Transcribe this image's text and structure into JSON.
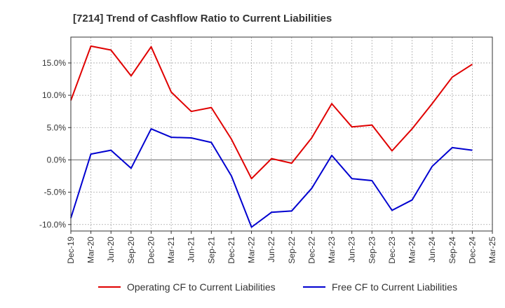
{
  "chart_data": {
    "type": "line",
    "title": "[7214]  Trend of Cashflow Ratio to Current Liabilities",
    "xlabel": "",
    "ylabel": "",
    "x": [
      "Dec-19",
      "Mar-20",
      "Jun-20",
      "Sep-20",
      "Dec-20",
      "Mar-21",
      "Jun-21",
      "Sep-21",
      "Dec-21",
      "Mar-22",
      "Jun-22",
      "Sep-22",
      "Dec-22",
      "Mar-23",
      "Jun-23",
      "Sep-23",
      "Dec-23",
      "Mar-24",
      "Jun-24",
      "Sep-24",
      "Dec-24",
      "Mar-25"
    ],
    "ylim": [
      -11,
      19
    ],
    "yticks": [
      15,
      10,
      5,
      0,
      -5,
      -10
    ],
    "ytick_labels": [
      "15.0%",
      "10.0%",
      "5.0%",
      "0.0%",
      "-5.0%",
      "-10.0%"
    ],
    "grid": true,
    "legend_position": "bottom",
    "series": [
      {
        "name": "Operating CF to Current Liabilities",
        "color": "#e00000",
        "values": [
          9.2,
          17.6,
          17.0,
          13.0,
          17.5,
          10.5,
          7.5,
          8.1,
          3.2,
          -2.9,
          0.2,
          -0.5,
          3.4,
          8.7,
          5.1,
          5.4,
          1.4,
          4.8,
          8.7,
          12.8,
          14.8,
          null
        ]
      },
      {
        "name": "Free CF to Current Liabilities",
        "color": "#0000d0",
        "values": [
          -9.0,
          0.9,
          1.5,
          -1.3,
          4.8,
          3.5,
          3.4,
          2.7,
          -2.5,
          -10.4,
          -8.1,
          -7.9,
          -4.4,
          0.7,
          -2.9,
          -3.2,
          -7.8,
          -6.2,
          -1.0,
          1.9,
          1.5,
          null
        ]
      }
    ]
  }
}
